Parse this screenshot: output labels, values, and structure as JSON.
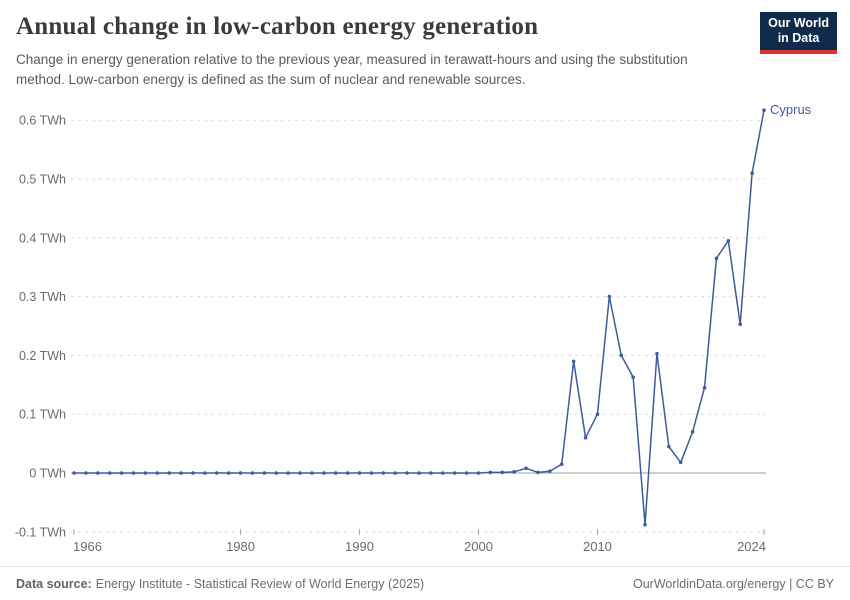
{
  "header": {
    "title": "Annual change in low-carbon energy generation",
    "subtitle": "Change in energy generation relative to the previous year, measured in terawatt-hours and using the substitution method. Low-carbon energy is defined as the sum of nuclear and renewable sources.",
    "logo_line1": "Our World",
    "logo_line2": "in Data"
  },
  "chart_data": {
    "type": "line",
    "title": "Annual change in low-carbon energy generation",
    "unit": "TWh",
    "xlabel": "",
    "ylabel": "",
    "xlim": [
      1966,
      2024
    ],
    "ylim": [
      -0.13,
      0.65
    ],
    "grid": "horizontal-dashed",
    "legend": "end-of-line-label",
    "x": [
      1966,
      1967,
      1968,
      1969,
      1970,
      1971,
      1972,
      1973,
      1974,
      1975,
      1976,
      1977,
      1978,
      1979,
      1980,
      1981,
      1982,
      1983,
      1984,
      1985,
      1986,
      1987,
      1988,
      1989,
      1990,
      1991,
      1992,
      1993,
      1994,
      1995,
      1996,
      1997,
      1998,
      1999,
      2000,
      2001,
      2002,
      2003,
      2004,
      2005,
      2006,
      2007,
      2008,
      2009,
      2010,
      2011,
      2012,
      2013,
      2014,
      2015,
      2016,
      2017,
      2018,
      2019,
      2020,
      2021,
      2022,
      2023,
      2024
    ],
    "series": [
      {
        "name": "Cyprus",
        "color": "#3e5c9c",
        "values": [
          0,
          0,
          0,
          0,
          0,
          0,
          0,
          0,
          0,
          0,
          0,
          0,
          0,
          0,
          0,
          0,
          0,
          0,
          0,
          0,
          0,
          0,
          0,
          0,
          0,
          0,
          0,
          0,
          0,
          0,
          0,
          0,
          0,
          0,
          0,
          0.001,
          0.001,
          0.002,
          0.008,
          0.001,
          0.003,
          0.015,
          0.19,
          0.06,
          0.1,
          0.3,
          0.2,
          0.163,
          -0.088,
          0.203,
          0.045,
          0.018,
          0.07,
          0.145,
          0.365,
          0.395,
          0.253,
          0.51,
          0.617
        ]
      }
    ],
    "y_ticks": [
      {
        "value": 0.6,
        "label": "0.6 TWh"
      },
      {
        "value": 0.5,
        "label": "0.5 TWh"
      },
      {
        "value": 0.4,
        "label": "0.4 TWh"
      },
      {
        "value": 0.3,
        "label": "0.3 TWh"
      },
      {
        "value": 0.2,
        "label": "0.2 TWh"
      },
      {
        "value": 0.1,
        "label": "0.1 TWh"
      },
      {
        "value": 0,
        "label": "0 TWh"
      },
      {
        "value": -0.1,
        "label": "-0.1 TWh"
      }
    ],
    "x_ticks": [
      {
        "value": 1966,
        "label": "1966"
      },
      {
        "value": 1980,
        "label": "1980"
      },
      {
        "value": 1990,
        "label": "1990"
      },
      {
        "value": 2000,
        "label": "2000"
      },
      {
        "value": 2010,
        "label": "2010"
      },
      {
        "value": 2024,
        "label": "2024"
      }
    ]
  },
  "footer": {
    "datasource_label": "Data source:",
    "datasource": "Energy Institute - Statistical Review of World Energy (2025)",
    "credit": "OurWorldinData.org/energy | CC BY"
  },
  "colors": {
    "series_blue": "#3e5c9c",
    "grid": "#dcdcdc",
    "zero_line": "#9e9e9e",
    "axis_text": "#6b6b6b",
    "logo_navy": "#102a4c",
    "logo_red": "#d8352c"
  }
}
